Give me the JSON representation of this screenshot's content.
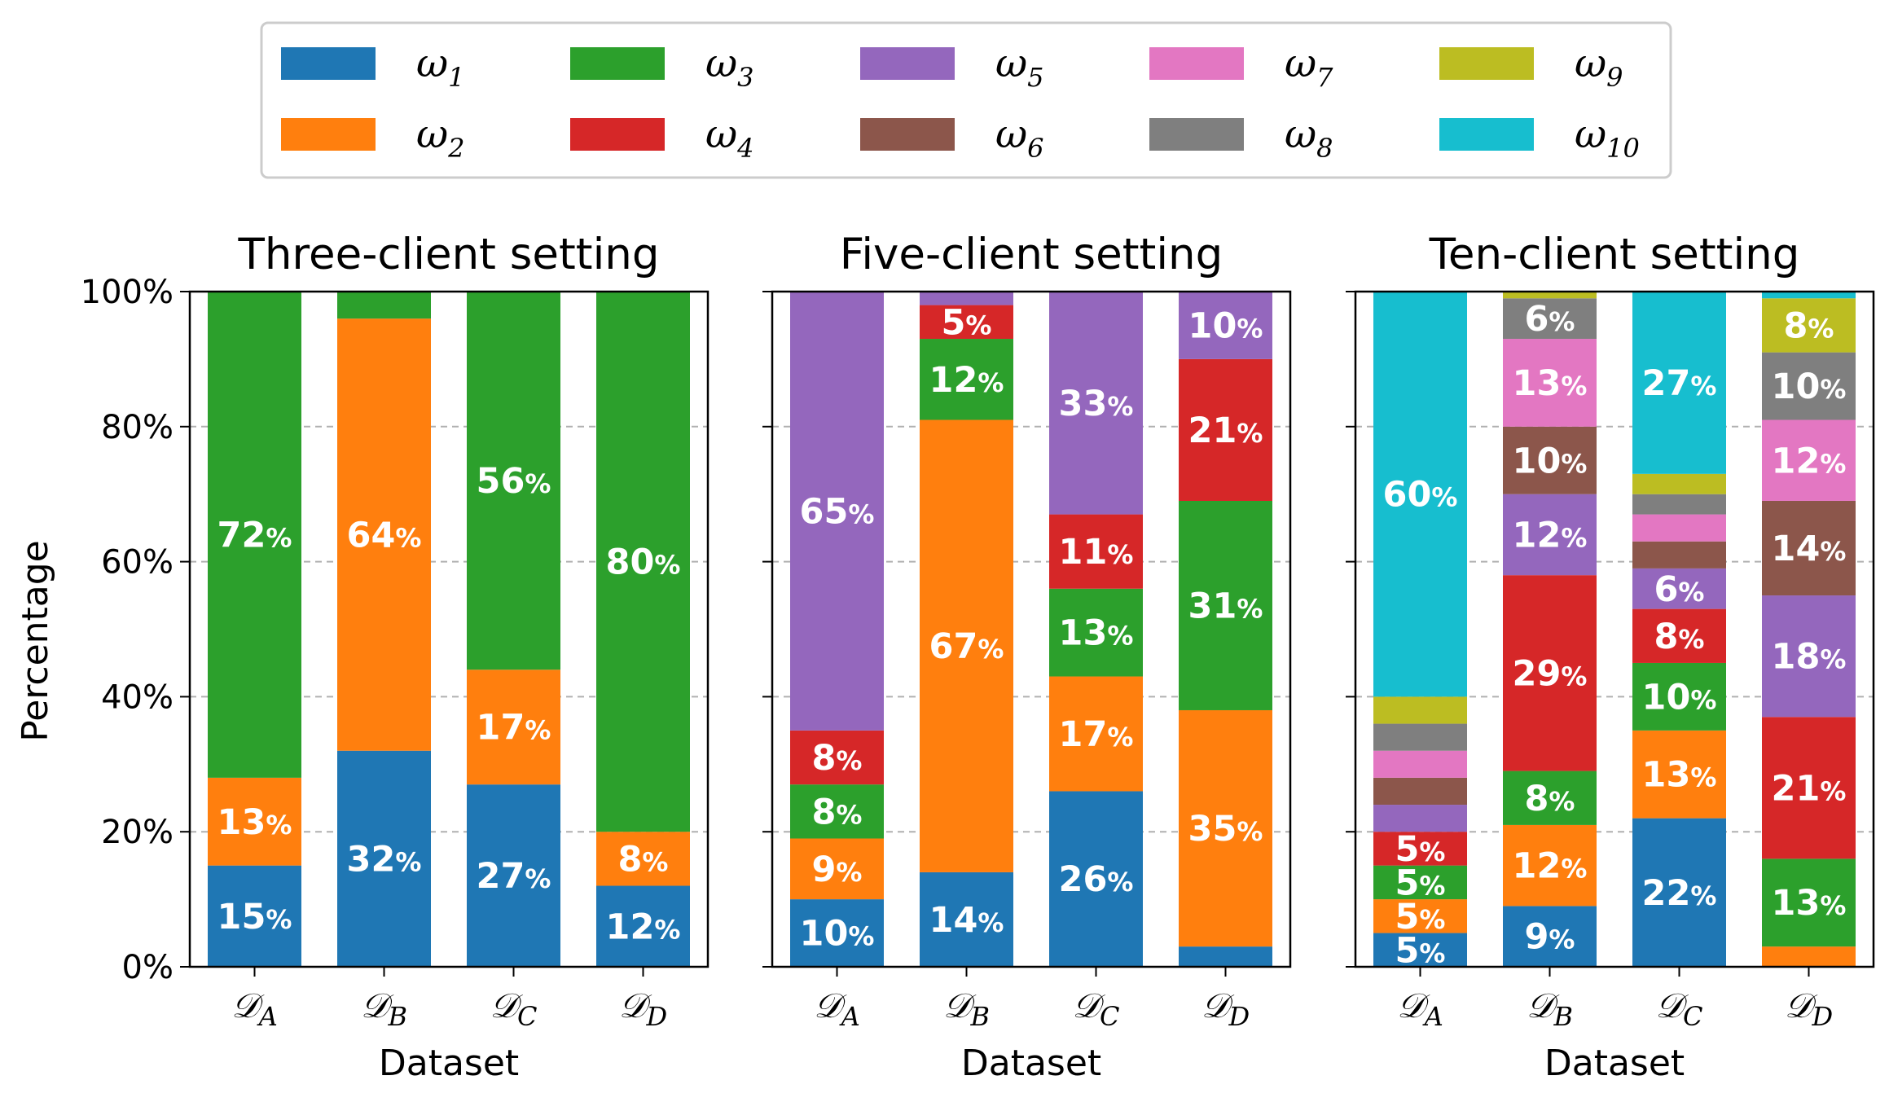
{
  "chart_data": {
    "type": "bar",
    "stacked": true,
    "legend": {
      "position": "top-center",
      "entries": [
        {
          "key": "w1",
          "symbol": "ω",
          "sub": "1",
          "color": "#1f77b4"
        },
        {
          "key": "w2",
          "symbol": "ω",
          "sub": "2",
          "color": "#ff7f0e"
        },
        {
          "key": "w3",
          "symbol": "ω",
          "sub": "3",
          "color": "#2ca02c"
        },
        {
          "key": "w4",
          "symbol": "ω",
          "sub": "4",
          "color": "#d62728"
        },
        {
          "key": "w5",
          "symbol": "ω",
          "sub": "5",
          "color": "#9467bd"
        },
        {
          "key": "w6",
          "symbol": "ω",
          "sub": "6",
          "color": "#8c564b"
        },
        {
          "key": "w7",
          "symbol": "ω",
          "sub": "7",
          "color": "#e377c2"
        },
        {
          "key": "w8",
          "symbol": "ω",
          "sub": "8",
          "color": "#7f7f7f"
        },
        {
          "key": "w9",
          "symbol": "ω",
          "sub": "9",
          "color": "#bcbd22"
        },
        {
          "key": "w10",
          "symbol": "ω",
          "sub": "10",
          "color": "#17becf"
        }
      ]
    },
    "ylabel": "Percentage",
    "ylim": [
      0,
      100
    ],
    "yticks": [
      0,
      20,
      40,
      60,
      80,
      100
    ],
    "ytick_labels": [
      "0%",
      "20%",
      "40%",
      "60%",
      "80%",
      "100%"
    ],
    "grid": "horizontal dashed",
    "panels": [
      {
        "title": "Three-client setting",
        "xlabel": "Dataset",
        "categories": [
          {
            "symbol": "𝒟",
            "sub": "A"
          },
          {
            "symbol": "𝒟",
            "sub": "B"
          },
          {
            "symbol": "𝒟",
            "sub": "C"
          },
          {
            "symbol": "𝒟",
            "sub": "D"
          }
        ],
        "bars": [
          [
            {
              "class": "w1",
              "value": 15
            },
            {
              "class": "w2",
              "value": 13
            },
            {
              "class": "w3",
              "value": 72
            }
          ],
          [
            {
              "class": "w1",
              "value": 32
            },
            {
              "class": "w2",
              "value": 64
            },
            {
              "class": "w3",
              "value": 4
            }
          ],
          [
            {
              "class": "w1",
              "value": 27
            },
            {
              "class": "w2",
              "value": 17
            },
            {
              "class": "w3",
              "value": 56
            }
          ],
          [
            {
              "class": "w1",
              "value": 12
            },
            {
              "class": "w2",
              "value": 8
            },
            {
              "class": "w3",
              "value": 80
            }
          ]
        ]
      },
      {
        "title": "Five-client setting",
        "xlabel": "Dataset",
        "categories": [
          {
            "symbol": "𝒟",
            "sub": "A"
          },
          {
            "symbol": "𝒟",
            "sub": "B"
          },
          {
            "symbol": "𝒟",
            "sub": "C"
          },
          {
            "symbol": "𝒟",
            "sub": "D"
          }
        ],
        "bars": [
          [
            {
              "class": "w1",
              "value": 10
            },
            {
              "class": "w2",
              "value": 9
            },
            {
              "class": "w3",
              "value": 8
            },
            {
              "class": "w4",
              "value": 8
            },
            {
              "class": "w5",
              "value": 65
            }
          ],
          [
            {
              "class": "w1",
              "value": 14
            },
            {
              "class": "w2",
              "value": 67
            },
            {
              "class": "w3",
              "value": 12
            },
            {
              "class": "w4",
              "value": 5
            },
            {
              "class": "w5",
              "value": 2
            }
          ],
          [
            {
              "class": "w1",
              "value": 26
            },
            {
              "class": "w2",
              "value": 17
            },
            {
              "class": "w3",
              "value": 13
            },
            {
              "class": "w4",
              "value": 11
            },
            {
              "class": "w5",
              "value": 33
            }
          ],
          [
            {
              "class": "w1",
              "value": 3
            },
            {
              "class": "w2",
              "value": 35
            },
            {
              "class": "w3",
              "value": 31
            },
            {
              "class": "w4",
              "value": 21
            },
            {
              "class": "w5",
              "value": 10
            }
          ]
        ]
      },
      {
        "title": "Ten-client setting",
        "xlabel": "Dataset",
        "categories": [
          {
            "symbol": "𝒟",
            "sub": "A"
          },
          {
            "symbol": "𝒟",
            "sub": "B"
          },
          {
            "symbol": "𝒟",
            "sub": "C"
          },
          {
            "symbol": "𝒟",
            "sub": "D"
          }
        ],
        "bars": [
          [
            {
              "class": "w1",
              "value": 5
            },
            {
              "class": "w2",
              "value": 5
            },
            {
              "class": "w3",
              "value": 5
            },
            {
              "class": "w4",
              "value": 5
            },
            {
              "class": "w5",
              "value": 4
            },
            {
              "class": "w6",
              "value": 4
            },
            {
              "class": "w7",
              "value": 4
            },
            {
              "class": "w8",
              "value": 4
            },
            {
              "class": "w9",
              "value": 4
            },
            {
              "class": "w10",
              "value": 60
            }
          ],
          [
            {
              "class": "w1",
              "value": 9
            },
            {
              "class": "w2",
              "value": 12
            },
            {
              "class": "w3",
              "value": 8
            },
            {
              "class": "w4",
              "value": 29
            },
            {
              "class": "w5",
              "value": 12
            },
            {
              "class": "w6",
              "value": 10
            },
            {
              "class": "w7",
              "value": 13
            },
            {
              "class": "w8",
              "value": 6
            },
            {
              "class": "w9",
              "value": 1
            },
            {
              "class": "w10",
              "value": 0
            }
          ],
          [
            {
              "class": "w1",
              "value": 22
            },
            {
              "class": "w2",
              "value": 13
            },
            {
              "class": "w3",
              "value": 10
            },
            {
              "class": "w4",
              "value": 8
            },
            {
              "class": "w5",
              "value": 6
            },
            {
              "class": "w6",
              "value": 4
            },
            {
              "class": "w7",
              "value": 4
            },
            {
              "class": "w8",
              "value": 3
            },
            {
              "class": "w9",
              "value": 3
            },
            {
              "class": "w10",
              "value": 27
            }
          ],
          [
            {
              "class": "w1",
              "value": 0
            },
            {
              "class": "w2",
              "value": 3
            },
            {
              "class": "w3",
              "value": 13
            },
            {
              "class": "w4",
              "value": 21
            },
            {
              "class": "w5",
              "value": 18
            },
            {
              "class": "w6",
              "value": 14
            },
            {
              "class": "w7",
              "value": 12
            },
            {
              "class": "w8",
              "value": 10
            },
            {
              "class": "w9",
              "value": 8
            },
            {
              "class": "w10",
              "value": 1
            }
          ]
        ]
      }
    ],
    "bar_labels": {
      "min_value_shown": 5,
      "suffix": "%"
    }
  }
}
